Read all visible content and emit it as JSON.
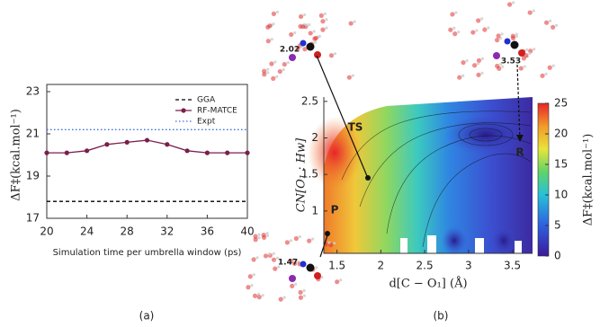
{
  "chart_data": [
    {
      "type": "line",
      "ylabel": "ΔF‡(kcal.mol⁻¹)",
      "xlabel": "Simulation time per umbrella window (ps)",
      "caption": "(a)",
      "x": [
        20,
        22,
        24,
        26,
        28,
        30,
        32,
        34,
        36,
        38,
        40
      ],
      "series": [
        {
          "name": "GGA",
          "color": "#000000",
          "style": "dashed",
          "values": [
            17.8,
            17.8,
            17.8,
            17.8,
            17.8,
            17.8,
            17.8,
            17.8,
            17.8,
            17.8,
            17.8
          ]
        },
        {
          "name": "RF-MATCE",
          "color": "#7a1f4a",
          "style": "solid",
          "marker": true,
          "values": [
            20.1,
            20.1,
            20.2,
            20.5,
            20.6,
            20.7,
            20.5,
            20.2,
            20.1,
            20.1,
            20.1
          ]
        },
        {
          "name": "Expt",
          "color": "#3a6fd8",
          "style": "dotted",
          "values": [
            21.2,
            21.2,
            21.2,
            21.2,
            21.2,
            21.2,
            21.2,
            21.2,
            21.2,
            21.2,
            21.2
          ]
        }
      ],
      "xlim": [
        20,
        40
      ],
      "xticks": [
        20,
        24,
        28,
        32,
        36,
        40
      ],
      "ylim": [
        17,
        23
      ],
      "yticks": [
        17,
        19,
        21,
        23
      ],
      "legend": "upper-right"
    },
    {
      "type": "contour",
      "xlabel": "d[C − O₁] (Å)",
      "ylabel": "CN[O₁ : Hw]",
      "clabel": "ΔF‡(kcal.mol⁻¹)",
      "caption": "(b)",
      "xlim": [
        1.35,
        3.73
      ],
      "xticks": [
        1.5,
        2,
        2.5,
        3,
        3.5
      ],
      "ylim": [
        0.42,
        2.56
      ],
      "yticks": [
        1,
        1.5,
        2,
        2.5
      ],
      "clim": [
        0,
        25
      ],
      "cticks": [
        0,
        5,
        10,
        15,
        20,
        25
      ],
      "annotations": [
        "TS",
        "P",
        "R",
        "2.02",
        "3.53",
        "1.47"
      ]
    }
  ]
}
